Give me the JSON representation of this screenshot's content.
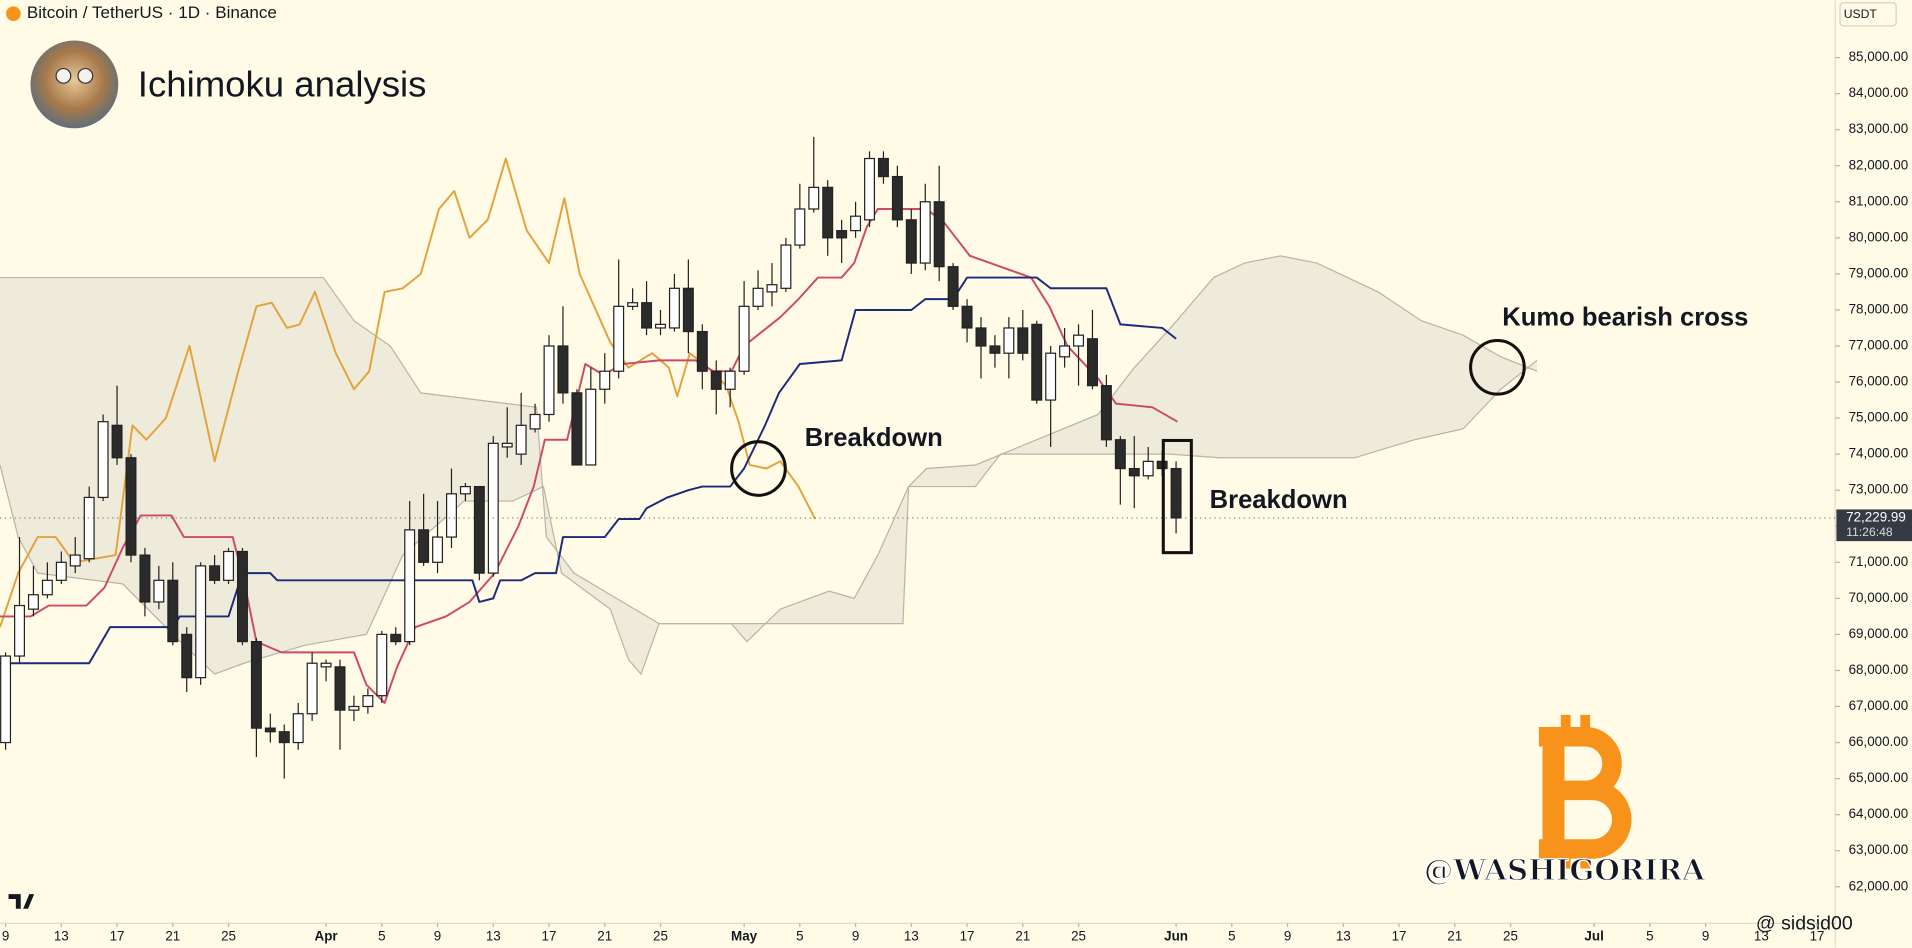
{
  "chart_data": {
    "type": "candlestick",
    "title": "Ichimoku analysis",
    "subtitle": "Bitcoin / TetherUS · 1D · Binance",
    "currency": "USDT",
    "up_color": "#ffffff",
    "down_color": "#2b2b2b",
    "xlim": [
      8.6,
      140.3
    ],
    "ylim": [
      60985,
      86590
    ],
    "xticks": [
      9,
      13,
      17,
      21,
      25,
      {
        "value": 32,
        "label": "Apr"
      },
      {
        "value": 36,
        "label": "5"
      },
      {
        "value": 40,
        "label": "9"
      },
      {
        "value": 44,
        "label": "13"
      },
      {
        "value": 48,
        "label": "17"
      },
      {
        "value": 52,
        "label": "21"
      },
      {
        "value": 56,
        "label": "25"
      },
      {
        "value": 62,
        "label": "May"
      },
      {
        "value": 66,
        "label": "5"
      },
      {
        "value": 70,
        "label": "9"
      },
      {
        "value": 74,
        "label": "13"
      },
      {
        "value": 78,
        "label": "17"
      },
      {
        "value": 82,
        "label": "21"
      },
      {
        "value": 86,
        "label": "25"
      },
      {
        "value": 93,
        "label": "Jun"
      },
      {
        "value": 97,
        "label": "5"
      },
      {
        "value": 101,
        "label": "9"
      },
      {
        "value": 105,
        "label": "13"
      },
      {
        "value": 109,
        "label": "17"
      },
      {
        "value": 113,
        "label": "21"
      },
      {
        "value": 117,
        "label": "25"
      },
      {
        "value": 123,
        "label": "Jul"
      },
      {
        "value": 127,
        "label": "5"
      },
      {
        "value": 131,
        "label": "9"
      },
      {
        "value": 135,
        "label": "13"
      },
      {
        "value": 139,
        "label": "17"
      }
    ],
    "yticks": [
      {
        "value": 62000,
        "label": "62,000.00"
      },
      {
        "value": 63000,
        "label": "63,000.00"
      },
      {
        "value": 64000,
        "label": "64,000.00"
      },
      {
        "value": 65000,
        "label": "65,000.00"
      },
      {
        "value": 66000,
        "label": "66,000.00"
      },
      {
        "value": 67000,
        "label": "67,000.00"
      },
      {
        "value": 68000,
        "label": "68,000.00"
      },
      {
        "value": 69000,
        "label": "69,000.00"
      },
      {
        "value": 70000,
        "label": "70,000.00"
      },
      {
        "value": 71000,
        "label": "71,000.00"
      },
      {
        "value": 72000,
        "label": "72,000.00"
      },
      {
        "value": 73000,
        "label": "73,000.00"
      },
      {
        "value": 74000,
        "label": "74,000.00"
      },
      {
        "value": 75000,
        "label": "75,000.00"
      },
      {
        "value": 76000,
        "label": "76,000.00"
      },
      {
        "value": 77000,
        "label": "77,000.00"
      },
      {
        "value": 78000,
        "label": "78,000.00"
      },
      {
        "value": 79000,
        "label": "79,000.00"
      },
      {
        "value": 80000,
        "label": "80,000.00"
      },
      {
        "value": 81000,
        "label": "81,000.00"
      },
      {
        "value": 82000,
        "label": "82,000.00"
      },
      {
        "value": 83000,
        "label": "83,000.00"
      },
      {
        "value": 84000,
        "label": "84,000.00"
      },
      {
        "value": 85000,
        "label": "85,000.00"
      }
    ],
    "x": [
      9,
      10,
      11,
      12,
      13,
      14,
      15,
      16,
      17,
      18,
      19,
      20,
      21,
      22,
      23,
      24,
      25,
      26,
      27,
      28,
      29,
      30,
      31,
      32,
      33,
      34,
      35,
      36,
      37,
      38,
      39,
      40,
      41,
      42,
      43,
      44,
      45,
      46,
      47,
      48,
      49,
      50,
      51,
      52,
      53,
      54,
      55,
      56,
      57,
      58,
      59,
      60,
      61,
      62,
      63,
      64,
      65,
      66,
      67,
      68,
      69,
      70,
      71,
      72,
      73,
      74,
      75,
      76,
      77,
      78,
      79,
      80,
      81,
      82,
      83,
      84,
      85,
      86,
      87,
      88,
      89,
      90,
      91,
      92,
      93
    ],
    "open": [
      66000,
      68400,
      69700,
      70100,
      70500,
      70900,
      71100,
      72800,
      74800,
      73900,
      71200,
      69900,
      70500,
      69000,
      67800,
      70900,
      70500,
      71300,
      68800,
      66400,
      66300,
      66000,
      66800,
      68100,
      68100,
      66900,
      67000,
      67300,
      69000,
      68800,
      71900,
      71000,
      71700,
      72900,
      73100,
      70700,
      74200,
      74000,
      74700,
      75100,
      77000,
      75700,
      73700,
      75800,
      76300,
      78100,
      78200,
      77500,
      77500,
      78600,
      77400,
      76300,
      75800,
      76300,
      78100,
      78500,
      78600,
      79800,
      80800,
      81400,
      80200,
      80200,
      80500,
      82200,
      81700,
      80500,
      79300,
      81000,
      79200,
      78100,
      77500,
      77000,
      76800,
      77500,
      77600,
      75500,
      76700,
      77000,
      77200,
      75900,
      74400,
      73600,
      73400,
      73800,
      73600
    ],
    "high": [
      68500,
      71700,
      70900,
      71000,
      71300,
      71700,
      73100,
      75100,
      75900,
      74000,
      71400,
      70900,
      71000,
      69200,
      71000,
      71200,
      71400,
      71400,
      68900,
      66800,
      66500,
      67100,
      68500,
      68300,
      68300,
      67300,
      67500,
      69100,
      69200,
      72700,
      72900,
      72700,
      73600,
      73200,
      73100,
      74500,
      75300,
      75700,
      75400,
      77300,
      78100,
      75800,
      76400,
      76800,
      79400,
      78600,
      78800,
      78000,
      79000,
      79400,
      77600,
      76600,
      76400,
      78800,
      79100,
      79300,
      80000,
      81500,
      82800,
      81600,
      80500,
      81000,
      82400,
      82400,
      82000,
      80800,
      81500,
      82000,
      79300,
      78300,
      77800,
      77300,
      77800,
      78000,
      77700,
      77000,
      77500,
      77600,
      78000,
      76200,
      74500,
      74500,
      74200,
      74100,
      73800
    ],
    "low": [
      65800,
      68200,
      69500,
      70000,
      70400,
      70700,
      71000,
      72700,
      73700,
      71000,
      69500,
      69700,
      68700,
      67400,
      67600,
      70400,
      70400,
      68700,
      65600,
      66000,
      65000,
      65800,
      66600,
      67700,
      65800,
      66600,
      66800,
      67100,
      68700,
      68700,
      70900,
      70700,
      71400,
      72700,
      70500,
      70600,
      73900,
      73700,
      74600,
      74900,
      75400,
      73700,
      73700,
      75400,
      76100,
      78000,
      77300,
      77300,
      77400,
      76800,
      75800,
      75100,
      75300,
      76200,
      78000,
      78100,
      78500,
      79700,
      80700,
      79500,
      79300,
      80000,
      80300,
      81500,
      80300,
      79000,
      79100,
      78800,
      78000,
      77100,
      76100,
      76400,
      76100,
      76600,
      75400,
      74200,
      76400,
      75900,
      75800,
      74200,
      72600,
      72500,
      73300,
      73400,
      71800
    ],
    "close": [
      68400,
      69800,
      70100,
      70500,
      71000,
      71200,
      72800,
      74900,
      73900,
      71200,
      69900,
      70500,
      68800,
      67800,
      70900,
      70500,
      71300,
      68800,
      66400,
      66300,
      66000,
      66800,
      68200,
      68200,
      66900,
      67000,
      67300,
      69000,
      68800,
      71900,
      71000,
      71700,
      72900,
      73100,
      70700,
      74300,
      74300,
      74800,
      75100,
      77000,
      75700,
      73700,
      75800,
      76300,
      78100,
      78200,
      77500,
      77600,
      78600,
      77400,
      76300,
      75800,
      76300,
      78100,
      78600,
      78700,
      79800,
      80800,
      81400,
      80000,
      80000,
      80600,
      82200,
      81700,
      80500,
      79300,
      81000,
      79200,
      78100,
      77500,
      77000,
      76800,
      77500,
      76800,
      75500,
      76800,
      77000,
      77300,
      75900,
      74400,
      73600,
      73400,
      73800,
      73600,
      72229.99
    ],
    "cloud": {
      "color": "#b9b4a8",
      "fill": "#e9e5d6",
      "span_a": {
        "x": [
          8.6,
          9.9,
          11.3,
          17.4,
          21.8,
          24.0,
          26.1,
          30.5,
          34.9,
          37.5,
          41.9,
          45.4,
          47.6,
          48.9,
          52.4,
          53.7,
          54.6,
          55.9,
          61.1,
          62.2,
          64.6,
          68.1,
          69.9,
          71.6,
          73.8,
          75.1,
          78.6,
          83.0,
          87.4,
          90.0,
          92.6,
          95.7,
          97.9,
          100.5,
          103.1,
          107.5,
          110.6,
          113.6,
          116.3,
          118.9
        ],
        "values": [
          73700,
          71700,
          70700,
          70400,
          68700,
          67900,
          68200,
          68700,
          69000,
          71200,
          72700,
          72700,
          73100,
          70700,
          69700,
          68300,
          67900,
          69300,
          69300,
          68800,
          69700,
          70200,
          70000,
          71200,
          73100,
          73600,
          73700,
          74400,
          75100,
          76400,
          77500,
          78900,
          79300,
          79500,
          79300,
          78500,
          77700,
          77300,
          76700,
          76300
        ]
      },
      "span_b": {
        "x": [
          8.6,
          31.8,
          34.0,
          36.6,
          38.8,
          47.1,
          47.8,
          49.8,
          55.9,
          73.4,
          73.8,
          78.6,
          80.4,
          92.6,
          96.1,
          105.8,
          110.1,
          113.6,
          116.3,
          118.9
        ],
        "values": [
          78900,
          78900,
          77700,
          77000,
          75700,
          75300,
          71700,
          70700,
          69300,
          69300,
          73100,
          73100,
          74000,
          74000,
          73900,
          73900,
          74400,
          74700,
          75800,
          76600
        ]
      }
    },
    "lines": [
      {
        "color": "#e3a23b",
        "x": [
          8.6,
          9.9,
          11.3,
          12.6,
          13.9,
          16.9,
          18.1,
          19.1,
          20.5,
          22.2,
          24.0,
          25.7,
          27.0,
          28.1,
          29.2,
          30.1,
          31.2,
          32.7,
          34.0,
          35.1,
          36.2,
          37.5,
          38.8,
          40.1,
          41.2,
          42.3,
          43.6,
          44.9,
          46.4,
          48.0,
          49.1,
          50.2,
          52.4,
          53.7,
          55.4,
          56.6,
          57.2,
          58.1,
          59.4,
          60.7,
          61.6,
          62.4,
          63.6,
          64.6,
          65.9,
          67.1
        ],
        "values": [
          69200,
          70700,
          71700,
          71700,
          71000,
          71200,
          74800,
          74400,
          75000,
          77000,
          73800,
          76300,
          78100,
          78200,
          77500,
          77600,
          78500,
          76800,
          75800,
          76300,
          78500,
          78600,
          79000,
          80800,
          81300,
          80000,
          80500,
          82200,
          80200,
          79300,
          81100,
          79000,
          77100,
          76400,
          76800,
          76400,
          75600,
          76800,
          76400,
          75900,
          74900,
          73700,
          73600,
          73800,
          73100,
          72200
        ]
      },
      {
        "color": "#cc4a66",
        "x": [
          8.6,
          10.8,
          12.1,
          14.8,
          16.1,
          17.4,
          18.7,
          20.9,
          21.8,
          25.3,
          26.1,
          27.0,
          28.8,
          34.0,
          34.9,
          36.2,
          37.1,
          38.4,
          40.6,
          42.3,
          44.1,
          45.8,
          46.9,
          47.7,
          49.3,
          50.6,
          51.9,
          53.3,
          55.9,
          58.5,
          59.8,
          61.1,
          62.0,
          64.6,
          65.9,
          67.3,
          69.0,
          69.9,
          70.8,
          71.6,
          75.1,
          76.4,
          78.2,
          80.4,
          82.6,
          83.9,
          85.2,
          87.4,
          88.7,
          91.3,
          93.1
        ],
        "values": [
          69500,
          69500,
          69800,
          69800,
          70300,
          71400,
          72300,
          72300,
          71700,
          71700,
          70500,
          68800,
          68500,
          68500,
          67600,
          67100,
          68100,
          69200,
          69500,
          69900,
          70700,
          72000,
          73100,
          74400,
          74400,
          76500,
          76200,
          76500,
          76600,
          76600,
          76300,
          76300,
          77000,
          77800,
          78300,
          78900,
          78900,
          79300,
          80300,
          80800,
          80800,
          80400,
          79500,
          79200,
          78900,
          78100,
          77000,
          76100,
          75400,
          75300,
          74900
        ]
      },
      {
        "color": "#1c2a7a",
        "x": [
          8.6,
          15,
          16.5,
          21,
          21.5,
          25,
          26,
          28,
          28.5,
          42.5,
          43,
          44,
          44.5,
          46,
          47,
          48.5,
          49,
          52,
          53,
          54.5,
          55,
          56.5,
          58,
          59,
          61,
          62,
          63.5,
          64.5,
          66,
          69,
          70,
          74,
          75,
          77,
          78,
          83,
          84,
          88,
          89,
          92,
          93
        ],
        "values": [
          68200,
          68200,
          69200,
          69200,
          69500,
          69500,
          70700,
          70700,
          70500,
          70500,
          69900,
          70000,
          70500,
          70500,
          70700,
          70700,
          71700,
          71700,
          72200,
          72200,
          72500,
          72800,
          73000,
          73100,
          73100,
          73600,
          74800,
          75700,
          76500,
          76600,
          78000,
          78000,
          78300,
          78300,
          78900,
          78900,
          78600,
          78600,
          77600,
          77500,
          77200
        ]
      }
    ],
    "last_price": {
      "value": 72229.99,
      "label": "72,229.99"
    },
    "countdown": "11:26:48",
    "annotations": [
      "Breakdown",
      "Breakdown",
      "Kumo bearish cross"
    ],
    "signature": "@WASHIGORIRA",
    "credit": "@ sidsid00"
  }
}
